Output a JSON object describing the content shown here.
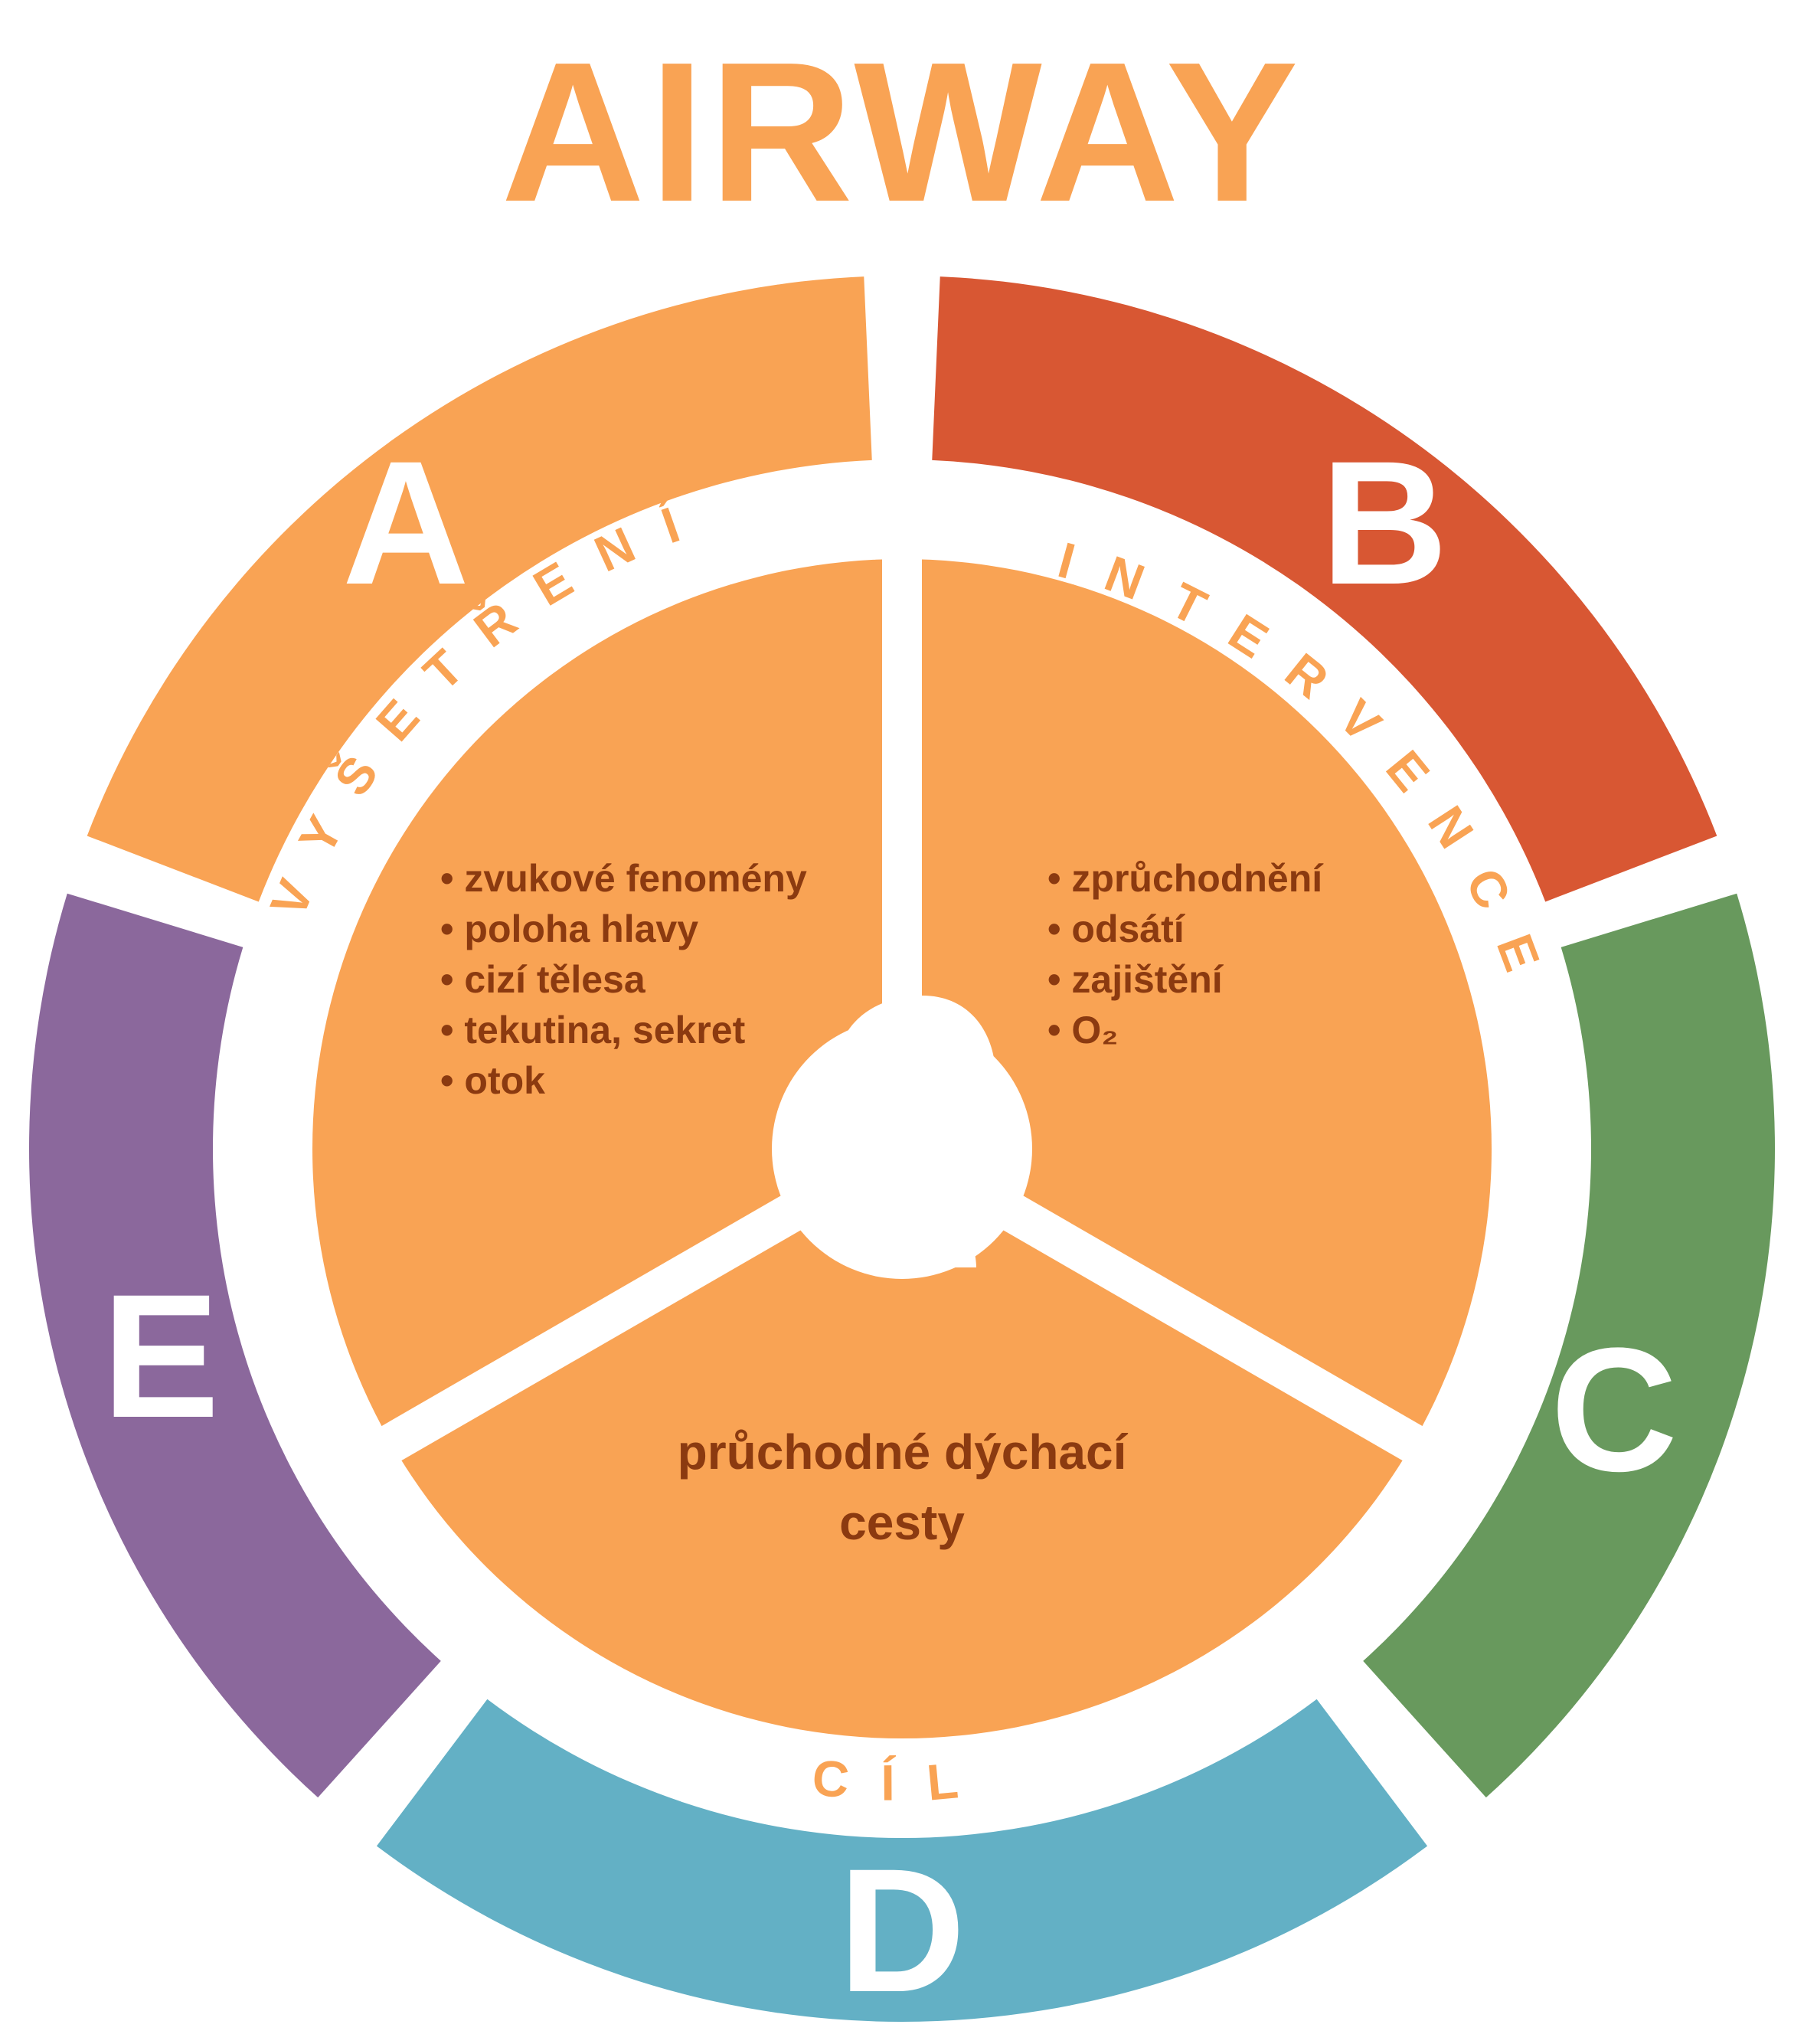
{
  "title": "AIRWAY",
  "colors": {
    "a": "#F9A354",
    "b": "#D85733",
    "c": "#68995D",
    "d": "#63B0C5",
    "e": "#8B689C",
    "inner": "#F9A354",
    "label": "#F9A354",
    "text": "#8B3A10",
    "bg": "#FFFFFF"
  },
  "segments": {
    "a": "A",
    "b": "B",
    "c": "C",
    "d": "D",
    "e": "E"
  },
  "arc_labels": {
    "left": "VYŠETŘENÍ",
    "right": "INTERVENCE",
    "bottom": "CÍL"
  },
  "assessment": {
    "items": [
      "zvukové fenomény",
      "poloha hlavy",
      "cizí tělesa",
      "tekutina, sekret",
      "otok"
    ]
  },
  "intervention": {
    "items": [
      "zprůchodnění",
      "odsátí",
      "zajištění",
      "O₂"
    ]
  },
  "goal": {
    "line1": "průchodné dýchací",
    "line2": "cesty"
  },
  "icon": "head-airway-icon"
}
